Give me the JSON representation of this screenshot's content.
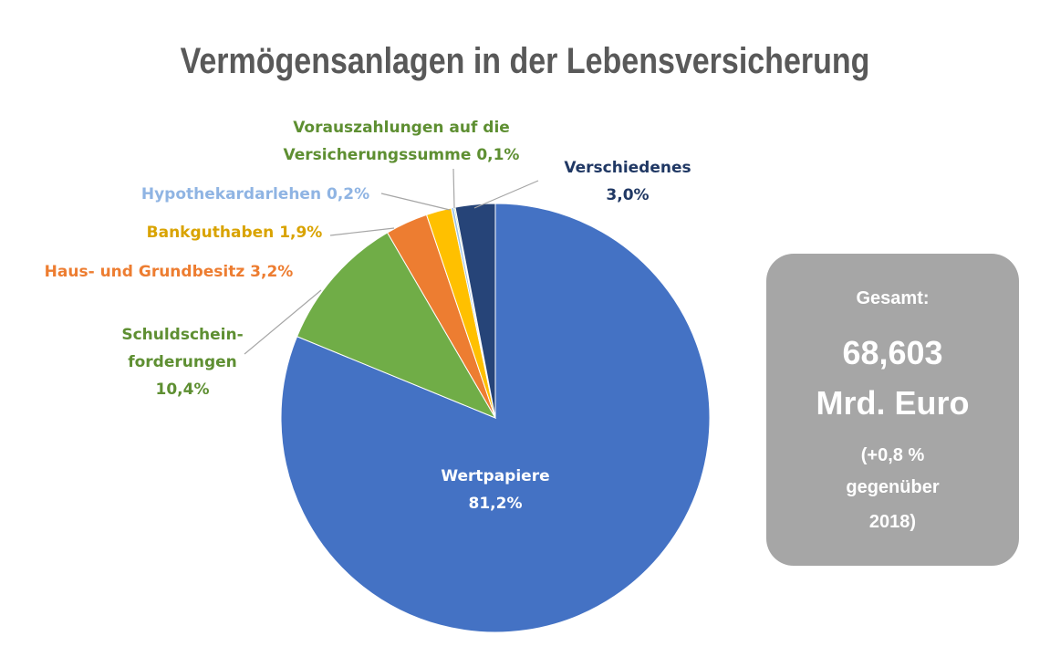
{
  "chart_data": {
    "type": "pie",
    "title": "Vermögensanlagen in der Lebensversicherung",
    "categories": [
      "Wertpapiere",
      "Schuldschein-forderungen",
      "Haus- und Grundbesitz",
      "Bankguthaben",
      "Hypothekardarlehen",
      "Vorauszahlungen auf die Versicherungssumme",
      "Verschiedenes"
    ],
    "values": [
      81.2,
      10.4,
      3.2,
      1.9,
      0.2,
      0.1,
      3.0
    ],
    "value_labels": [
      "81,2%",
      "10,4%",
      "3,2%",
      "1,9%",
      "0,2%",
      "0,1%",
      "3,0%"
    ],
    "colors": [
      "#4472c4",
      "#70ad47",
      "#ed7d31",
      "#ffc000",
      "#9dc3e6",
      "#a9d18e",
      "#264478"
    ],
    "annotation": {
      "lines": [
        "Gesamt:",
        "68,603",
        "Mrd. Euro",
        "(+0,8 %",
        "gegenüber",
        "2018)"
      ]
    }
  }
}
